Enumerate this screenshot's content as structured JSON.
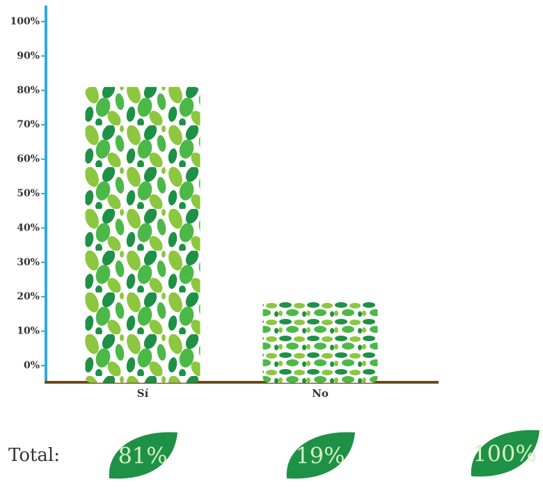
{
  "chart_data": {
    "type": "bar",
    "categories": [
      "Sí",
      "No"
    ],
    "values": [
      81,
      19
    ],
    "value_labels": [
      "81%",
      "19%"
    ],
    "ylim": [
      -5,
      100
    ],
    "yticks": [
      {
        "value": 0,
        "label": "0%"
      },
      {
        "value": 10,
        "label": "10%"
      },
      {
        "value": 20,
        "label": "20%"
      },
      {
        "value": 30,
        "label": "30%"
      },
      {
        "value": 40,
        "label": "40%"
      },
      {
        "value": 50,
        "label": "50%"
      },
      {
        "value": 60,
        "label": "60%"
      },
      {
        "value": 70,
        "label": "70%"
      },
      {
        "value": 80,
        "label": "80%"
      },
      {
        "value": 90,
        "label": "90%"
      },
      {
        "value": 100,
        "label": "100%"
      }
    ],
    "total_text": "Total:",
    "total": 100,
    "total_label": "100%"
  }
}
